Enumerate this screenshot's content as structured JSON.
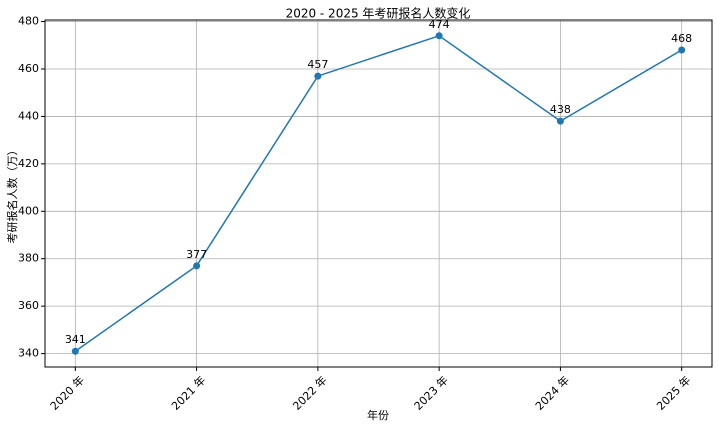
{
  "chart_data": {
    "type": "line",
    "title": "2020 - 2025 年考研报名人数变化",
    "x_label": "年份",
    "y_label": "考研报名人数（万）",
    "categories": [
      "2020 年",
      "2021 年",
      "2022 年",
      "2023 年",
      "2024 年",
      "2025 年"
    ],
    "values": [
      341,
      377,
      457,
      474,
      438,
      468
    ],
    "color": "#1f77b4",
    "ylim": [
      334.35,
      480.65
    ],
    "yticks": [
      340,
      360,
      380,
      400,
      420,
      440,
      460,
      480
    ],
    "grid": true,
    "show_value_labels": true
  }
}
